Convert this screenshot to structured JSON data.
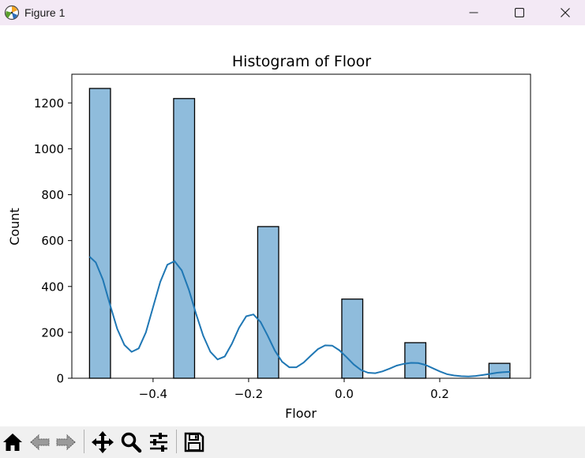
{
  "window": {
    "title": "Figure 1",
    "minimize_icon": "minimize-icon",
    "maximize_icon": "maximize-icon",
    "close_icon": "close-icon"
  },
  "toolbar": {
    "buttons": [
      "home-icon",
      "back-arrow-icon",
      "forward-arrow-icon",
      "pan-icon",
      "zoom-icon",
      "configure-subplots-icon",
      "save-icon"
    ]
  },
  "colors": {
    "bar_fill": "#8fbcdc",
    "bar_edge": "#000000",
    "kde_line": "#1f77b4",
    "titlebar": "#f3e9f5",
    "toolbar": "#f0f0f0"
  },
  "chart_data": {
    "type": "bar",
    "title": "Histogram of Floor",
    "xlabel": "Floor",
    "ylabel": "Count",
    "xlim": [
      -0.57,
      0.39
    ],
    "ylim": [
      0,
      1325
    ],
    "xticks": [
      -0.4,
      -0.2,
      0.0,
      0.2
    ],
    "xtick_labels": [
      "−0.4",
      "−0.2",
      "0.0",
      "0.2"
    ],
    "yticks": [
      0,
      200,
      400,
      600,
      800,
      1000,
      1200
    ],
    "ytick_labels": [
      "0",
      "200",
      "400",
      "600",
      "800",
      "1000",
      "1200"
    ],
    "bin_width": 0.0439,
    "bars": [
      {
        "x0": -0.533,
        "value": 1263
      },
      {
        "x0": -0.357,
        "value": 1219
      },
      {
        "x0": -0.181,
        "value": 661
      },
      {
        "x0": -0.005,
        "value": 345
      },
      {
        "x0": 0.127,
        "value": 155
      },
      {
        "x0": 0.303,
        "value": 65
      }
    ],
    "kde": {
      "x": [
        -0.533,
        -0.52,
        -0.505,
        -0.49,
        -0.475,
        -0.46,
        -0.445,
        -0.43,
        -0.415,
        -0.4,
        -0.385,
        -0.37,
        -0.355,
        -0.34,
        -0.325,
        -0.31,
        -0.295,
        -0.28,
        -0.265,
        -0.25,
        -0.235,
        -0.22,
        -0.205,
        -0.19,
        -0.175,
        -0.16,
        -0.145,
        -0.13,
        -0.115,
        -0.1,
        -0.085,
        -0.07,
        -0.055,
        -0.04,
        -0.025,
        -0.01,
        0.005,
        0.02,
        0.035,
        0.05,
        0.065,
        0.08,
        0.095,
        0.11,
        0.125,
        0.14,
        0.155,
        0.17,
        0.185,
        0.2,
        0.215,
        0.23,
        0.245,
        0.26,
        0.275,
        0.29,
        0.305,
        0.32,
        0.335,
        0.347
      ],
      "y": [
        530,
        505,
        430,
        320,
        215,
        145,
        115,
        130,
        200,
        310,
        420,
        495,
        510,
        470,
        385,
        280,
        185,
        115,
        82,
        95,
        150,
        220,
        270,
        278,
        245,
        185,
        120,
        72,
        48,
        48,
        68,
        98,
        127,
        143,
        142,
        122,
        92,
        60,
        36,
        24,
        22,
        30,
        42,
        55,
        63,
        67,
        66,
        58,
        44,
        30,
        18,
        12,
        9,
        8,
        10,
        14,
        19,
        24,
        27,
        28
      ]
    }
  }
}
